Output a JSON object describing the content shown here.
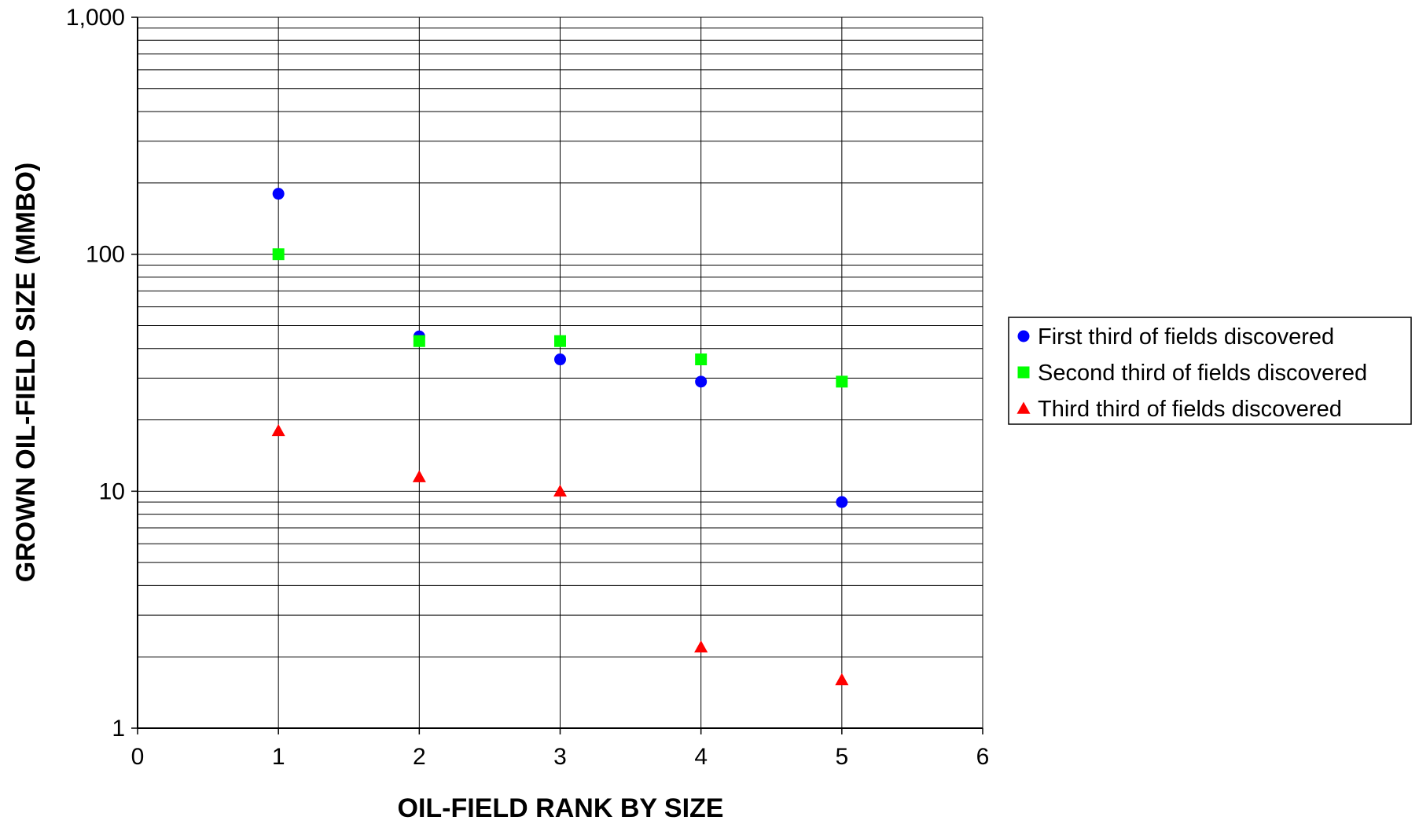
{
  "chart_data": {
    "type": "scatter",
    "title": "",
    "xlabel": "OIL-FIELD RANK BY SIZE",
    "ylabel": "GROWN OIL-FIELD SIZE (MMBO)",
    "xlim": [
      0,
      6
    ],
    "ylim": [
      1,
      1000
    ],
    "y_scale": "log",
    "grid": true,
    "legend_position": "right",
    "x_ticks": [
      0,
      1,
      2,
      3,
      4,
      5,
      6
    ],
    "x_tick_labels": [
      "0",
      "1",
      "2",
      "3",
      "4",
      "5",
      "6"
    ],
    "y_ticks": [
      1,
      10,
      100,
      1000
    ],
    "y_tick_labels": [
      "1",
      "10",
      "100",
      "1,000"
    ],
    "series": [
      {
        "name": "First third of fields discovered",
        "marker": "circle",
        "color": "#0000ff",
        "points": [
          {
            "x": 1,
            "y": 180
          },
          {
            "x": 2,
            "y": 45
          },
          {
            "x": 3,
            "y": 36
          },
          {
            "x": 4,
            "y": 29
          },
          {
            "x": 5,
            "y": 9
          }
        ]
      },
      {
        "name": "Second third of fields discovered",
        "marker": "square",
        "color": "#00ff00",
        "points": [
          {
            "x": 1,
            "y": 100
          },
          {
            "x": 2,
            "y": 43
          },
          {
            "x": 3,
            "y": 43
          },
          {
            "x": 4,
            "y": 36
          },
          {
            "x": 5,
            "y": 29
          }
        ]
      },
      {
        "name": "Third third of fields discovered",
        "marker": "triangle",
        "color": "#ff0000",
        "points": [
          {
            "x": 1,
            "y": 18
          },
          {
            "x": 2,
            "y": 11.5
          },
          {
            "x": 3,
            "y": 10
          },
          {
            "x": 4,
            "y": 2.2
          },
          {
            "x": 5,
            "y": 1.6
          }
        ]
      }
    ]
  }
}
